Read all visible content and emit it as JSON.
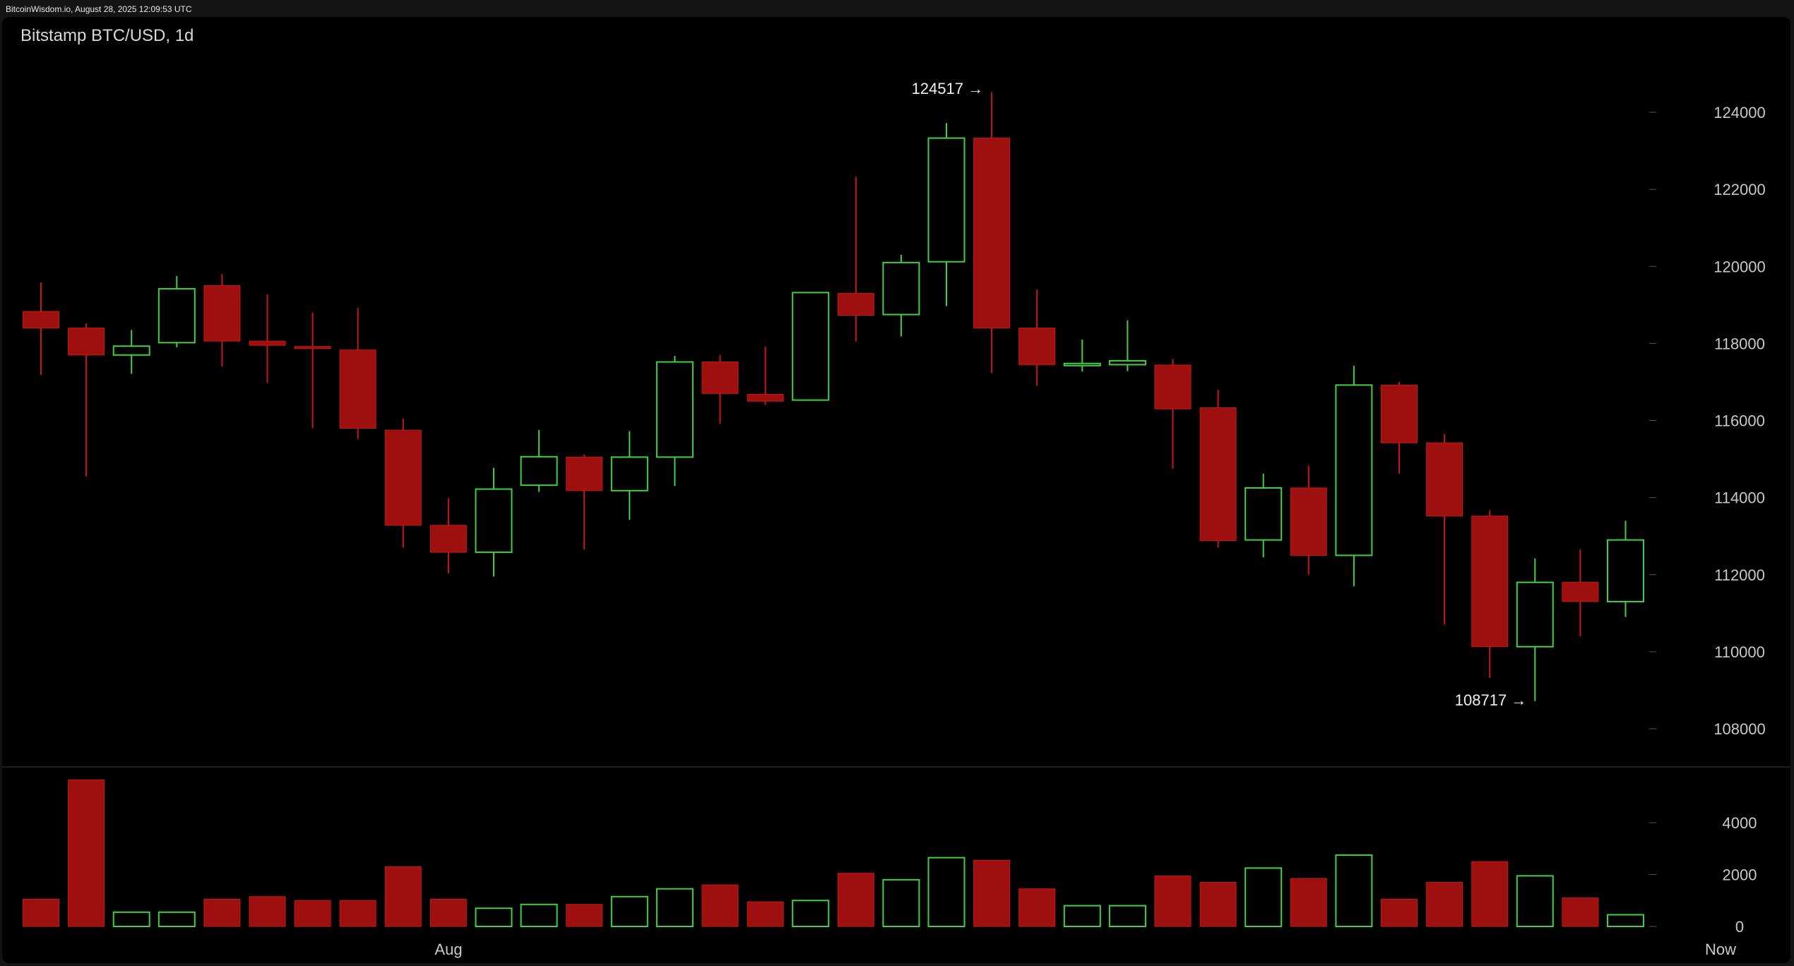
{
  "site_credit": "BitcoinWisdom.io, August 28, 2025 12:09:53 UTC",
  "colors": {
    "background": "#000000",
    "up": "#3fd13f",
    "down": "#9e0f0f",
    "down_wick": "#c41818",
    "text": "#d8d8d8"
  },
  "chart_data": {
    "type": "candlestick",
    "title": "Bitstamp BTC/USD, 1d",
    "price_axis": {
      "ticks": [
        108000,
        110000,
        112000,
        114000,
        116000,
        118000,
        120000,
        122000,
        124000
      ],
      "labels": [
        "108000",
        "110000",
        "112000",
        "114000",
        "116000",
        "118000",
        "120000",
        "122000",
        "124000"
      ],
      "range": [
        107000,
        125500
      ]
    },
    "volume_axis": {
      "ticks": [
        0,
        2000,
        4000
      ],
      "labels": [
        "0",
        "2000",
        "4000"
      ],
      "range": [
        0,
        5600
      ]
    },
    "time_axis": {
      "labels": [
        "Aug",
        "Now"
      ]
    },
    "annotations": {
      "high": {
        "value": 124517,
        "text": "124517 →",
        "candle_index": 21
      },
      "low": {
        "value": 108717,
        "text": "108717 →",
        "candle_index": 33
      }
    },
    "candles": [
      {
        "open": 118830,
        "high": 119580,
        "low": 117180,
        "close": 118400,
        "volume": 1050
      },
      {
        "open": 118400,
        "high": 118520,
        "low": 114550,
        "close": 117700,
        "volume": 5650
      },
      {
        "open": 117700,
        "high": 118350,
        "low": 117210,
        "close": 117930,
        "volume": 550
      },
      {
        "open": 118020,
        "high": 119750,
        "low": 117900,
        "close": 119420,
        "volume": 550
      },
      {
        "open": 119500,
        "high": 119800,
        "low": 117400,
        "close": 118060,
        "volume": 1050
      },
      {
        "open": 118060,
        "high": 119270,
        "low": 116980,
        "close": 117950,
        "volume": 1150
      },
      {
        "open": 117920,
        "high": 118800,
        "low": 115800,
        "close": 117880,
        "volume": 1000
      },
      {
        "open": 117830,
        "high": 118920,
        "low": 115520,
        "close": 115800,
        "volume": 1000
      },
      {
        "open": 115750,
        "high": 116050,
        "low": 112700,
        "close": 113280,
        "volume": 2300
      },
      {
        "open": 113280,
        "high": 113980,
        "low": 112030,
        "close": 112580,
        "volume": 1050
      },
      {
        "open": 112580,
        "high": 114770,
        "low": 111950,
        "close": 114220,
        "volume": 700
      },
      {
        "open": 114320,
        "high": 115750,
        "low": 114150,
        "close": 115060,
        "volume": 850
      },
      {
        "open": 115050,
        "high": 115120,
        "low": 112650,
        "close": 114180,
        "volume": 850
      },
      {
        "open": 114180,
        "high": 115720,
        "low": 113420,
        "close": 115050,
        "volume": 1150
      },
      {
        "open": 115050,
        "high": 117680,
        "low": 114300,
        "close": 117520,
        "volume": 1450
      },
      {
        "open": 117520,
        "high": 117700,
        "low": 115920,
        "close": 116700,
        "volume": 1600
      },
      {
        "open": 116680,
        "high": 117920,
        "low": 116400,
        "close": 116500,
        "volume": 950
      },
      {
        "open": 116530,
        "high": 119330,
        "low": 116530,
        "close": 119320,
        "volume": 1000
      },
      {
        "open": 119300,
        "high": 122330,
        "low": 118050,
        "close": 118730,
        "volume": 2050
      },
      {
        "open": 118750,
        "high": 120300,
        "low": 118180,
        "close": 120100,
        "volume": 1800
      },
      {
        "open": 120120,
        "high": 123720,
        "low": 118970,
        "close": 123330,
        "volume": 2650
      },
      {
        "open": 123330,
        "high": 124517,
        "low": 117230,
        "close": 118400,
        "volume": 2550
      },
      {
        "open": 118400,
        "high": 119400,
        "low": 116900,
        "close": 117450,
        "volume": 1450
      },
      {
        "open": 117430,
        "high": 118100,
        "low": 117270,
        "close": 117480,
        "volume": 800
      },
      {
        "open": 117450,
        "high": 118600,
        "low": 117280,
        "close": 117550,
        "volume": 800
      },
      {
        "open": 117440,
        "high": 117600,
        "low": 114750,
        "close": 116300,
        "volume": 1950
      },
      {
        "open": 116330,
        "high": 116800,
        "low": 112700,
        "close": 112880,
        "volume": 1700
      },
      {
        "open": 112900,
        "high": 114620,
        "low": 112450,
        "close": 114250,
        "volume": 2250
      },
      {
        "open": 114250,
        "high": 114830,
        "low": 112000,
        "close": 112500,
        "volume": 1850
      },
      {
        "open": 112500,
        "high": 117420,
        "low": 111700,
        "close": 116920,
        "volume": 2750
      },
      {
        "open": 116920,
        "high": 117000,
        "low": 114620,
        "close": 115420,
        "volume": 1050
      },
      {
        "open": 115420,
        "high": 115650,
        "low": 110700,
        "close": 113520,
        "volume": 1700
      },
      {
        "open": 113520,
        "high": 113670,
        "low": 109320,
        "close": 110130,
        "volume": 2500
      },
      {
        "open": 110130,
        "high": 112420,
        "low": 108717,
        "close": 111800,
        "volume": 1950
      },
      {
        "open": 111800,
        "high": 112650,
        "low": 110400,
        "close": 111300,
        "volume": 1100
      },
      {
        "open": 111300,
        "high": 113400,
        "low": 110900,
        "close": 112900,
        "volume": 450
      }
    ]
  }
}
